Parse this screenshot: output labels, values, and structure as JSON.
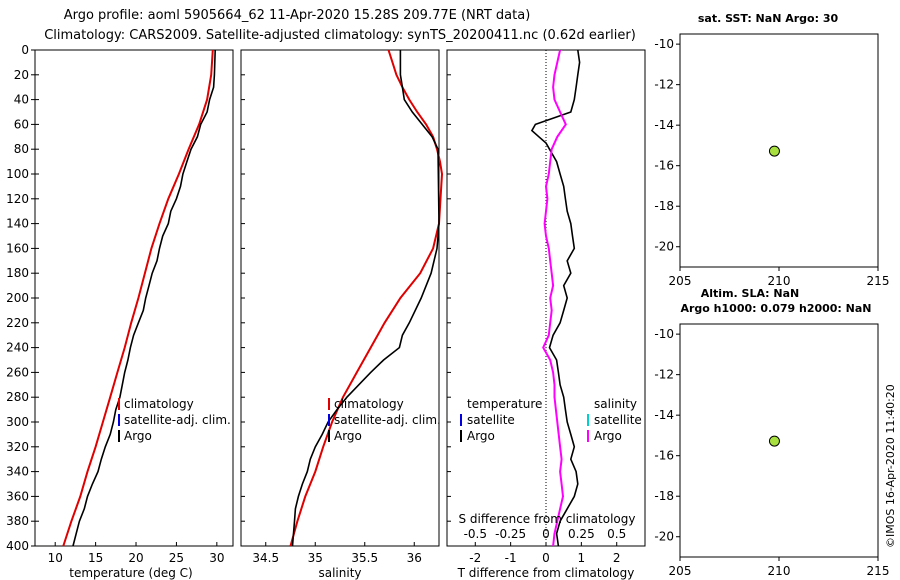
{
  "title": {
    "line1": "Argo profile: aoml 5905664_62 11-Apr-2020 15.28S 209.77E (NRT data)",
    "line2": "Climatology: CARS2009. Satellite-adjusted climatology: synTS_20200411.nc (0.62d earlier)"
  },
  "stamp": "©IMOS 16-Apr-2020 11:40:20",
  "colors": {
    "climatology": "#e00000",
    "satellite_adj": "#0000e0",
    "argo": "#000000",
    "t_diff": "#ff00ff",
    "s_satellite": "#00d0d0",
    "dot": "#a8e040"
  },
  "chart_data": [
    {
      "type": "line",
      "id": "temperature",
      "xlabel": "temperature (deg C)",
      "ylabel": "",
      "xlim": [
        7.5,
        32
      ],
      "ylim": [
        400,
        0
      ],
      "xticks": [
        "10",
        "15",
        "20",
        "25",
        "30"
      ],
      "xtick_values": [
        10,
        15,
        20,
        25,
        30
      ],
      "yticks": [
        "0",
        "20",
        "40",
        "60",
        "80",
        "100",
        "120",
        "140",
        "160",
        "180",
        "200",
        "220",
        "240",
        "260",
        "280",
        "300",
        "320",
        "340",
        "360",
        "380",
        "400"
      ],
      "ytick_values": [
        0,
        20,
        40,
        60,
        80,
        100,
        120,
        140,
        160,
        180,
        200,
        220,
        240,
        260,
        280,
        300,
        320,
        340,
        360,
        380,
        400
      ],
      "legend": [
        "climatology",
        "satellite-adj. clim.",
        "Argo"
      ],
      "series": [
        {
          "name": "climatology",
          "depth": [
            0,
            20,
            40,
            60,
            80,
            100,
            120,
            140,
            160,
            180,
            200,
            220,
            240,
            260,
            280,
            300,
            320,
            340,
            360,
            380,
            400
          ],
          "values": [
            29.5,
            29.3,
            28.8,
            27.8,
            26.5,
            25.3,
            24.0,
            22.9,
            21.9,
            21.1,
            20.3,
            19.4,
            18.6,
            17.7,
            16.8,
            15.9,
            15.0,
            14.0,
            13.1,
            12.0,
            11.0
          ]
        },
        {
          "name": "Argo",
          "depth": [
            0,
            20,
            30,
            40,
            50,
            60,
            70,
            80,
            90,
            100,
            110,
            120,
            130,
            140,
            150,
            160,
            170,
            180,
            190,
            200,
            210,
            220,
            230,
            240,
            250,
            260,
            270,
            280,
            290,
            300,
            310,
            320,
            330,
            340,
            350,
            360,
            370,
            380,
            390,
            400
          ],
          "values": [
            29.8,
            29.7,
            29.6,
            29.1,
            28.8,
            28.0,
            27.6,
            26.8,
            26.3,
            25.8,
            25.5,
            25.0,
            24.3,
            24.0,
            23.3,
            22.9,
            22.6,
            22.0,
            21.6,
            21.2,
            20.9,
            20.3,
            19.7,
            19.3,
            19.0,
            18.6,
            18.3,
            18.0,
            17.5,
            17.2,
            16.8,
            16.2,
            15.7,
            15.3,
            14.6,
            14.0,
            13.6,
            13.0,
            12.6,
            12.2
          ]
        }
      ]
    },
    {
      "type": "line",
      "id": "salinity",
      "xlabel": "salinity",
      "ylabel": "",
      "xlim": [
        34.25,
        36.25
      ],
      "ylim": [
        400,
        0
      ],
      "xticks": [
        "34.5",
        "35",
        "35.5",
        "36"
      ],
      "xtick_values": [
        34.5,
        35,
        35.5,
        36
      ],
      "legend": [
        "climatology",
        "satellite-adj. clim.",
        "Argo"
      ],
      "series": [
        {
          "name": "climatology",
          "depth": [
            0,
            10,
            20,
            30,
            40,
            50,
            60,
            70,
            80,
            90,
            100,
            140,
            160,
            180,
            200,
            220,
            240,
            260,
            280,
            300,
            320,
            340,
            360,
            380,
            400
          ],
          "values": [
            35.74,
            35.78,
            35.82,
            35.88,
            35.95,
            36.03,
            36.12,
            36.19,
            36.23,
            36.26,
            36.28,
            36.25,
            36.19,
            36.06,
            35.86,
            35.7,
            35.56,
            35.42,
            35.28,
            35.17,
            35.08,
            35.0,
            34.9,
            34.82,
            34.75
          ]
        },
        {
          "name": "Argo",
          "depth": [
            0,
            10,
            20,
            30,
            40,
            50,
            60,
            70,
            80,
            140,
            160,
            180,
            200,
            220,
            230,
            240,
            250,
            260,
            270,
            280,
            290,
            300,
            310,
            320,
            330,
            340,
            350,
            360,
            370,
            380,
            390,
            400
          ],
          "values": [
            35.86,
            35.86,
            35.86,
            35.88,
            35.9,
            35.98,
            36.08,
            36.18,
            36.24,
            36.25,
            36.23,
            36.17,
            36.07,
            35.95,
            35.88,
            35.85,
            35.69,
            35.56,
            35.44,
            35.32,
            35.22,
            35.13,
            35.07,
            35.0,
            34.95,
            34.92,
            34.87,
            34.83,
            34.8,
            34.79,
            34.78,
            34.77
          ]
        }
      ]
    },
    {
      "type": "line",
      "id": "differences",
      "xlabel": "T difference from climatology",
      "ylabel": "",
      "xlim": [
        -2.8,
        2.8
      ],
      "ylim": [
        400,
        0
      ],
      "xticks": [
        "-2",
        "-1",
        "0",
        "1",
        "2"
      ],
      "xtick_values": [
        -2,
        -1,
        0,
        1,
        2
      ],
      "top_axis_label": "S difference from climatology",
      "top_xticks": [
        "-0.5",
        "-0.25",
        "0",
        "0.25",
        "0.5"
      ],
      "top_xtick_values": [
        -0.5,
        -0.25,
        0,
        0.25,
        0.5
      ],
      "top_xlim": [
        -0.7,
        0.7
      ],
      "legend_temperature": [
        "temperature",
        "satellite",
        "Argo"
      ],
      "legend_salinity": [
        "salinity",
        "satellite",
        "Argo"
      ],
      "series": [
        {
          "name": "T difference (Argo)",
          "depth": [
            0,
            10,
            20,
            30,
            40,
            50,
            60,
            65,
            70,
            75,
            80,
            90,
            100,
            110,
            120,
            130,
            140,
            150,
            160,
            170,
            180,
            190,
            200,
            210,
            220,
            230,
            240,
            250,
            260,
            270,
            280,
            290,
            300,
            310,
            320,
            330,
            340,
            350,
            360,
            370,
            380,
            390,
            400
          ],
          "values": [
            0.9,
            0.95,
            0.9,
            0.85,
            0.8,
            0.7,
            -0.3,
            -0.4,
            -0.2,
            0,
            0.1,
            0.3,
            0.4,
            0.5,
            0.55,
            0.6,
            0.7,
            0.75,
            0.8,
            0.6,
            0.7,
            0.5,
            0.6,
            0.5,
            0.4,
            0.2,
            0.1,
            0.3,
            0.35,
            0.4,
            0.5,
            0.55,
            0.6,
            0.7,
            0.8,
            0.7,
            0.85,
            0.9,
            0.8,
            0.6,
            0.4,
            0.3,
            0.35
          ]
        },
        {
          "name": "S difference",
          "depth": [
            0,
            10,
            20,
            30,
            40,
            50,
            60,
            70,
            80,
            90,
            100,
            110,
            120,
            130,
            140,
            150,
            160,
            170,
            180,
            190,
            200,
            210,
            220,
            230,
            240,
            250,
            260,
            270,
            280,
            290,
            300,
            310,
            320,
            330,
            340,
            350,
            360,
            370,
            380,
            390,
            400
          ],
          "values": [
            0.1,
            0.08,
            0.06,
            0.05,
            0.06,
            0.1,
            0.14,
            0.08,
            0.04,
            0.03,
            0.02,
            0.0,
            0.01,
            0.0,
            -0.01,
            0.0,
            0.02,
            0.03,
            0.04,
            0.05,
            0.03,
            0.04,
            0.03,
            0.02,
            -0.02,
            0.03,
            0.05,
            0.06,
            0.06,
            0.07,
            0.08,
            0.09,
            0.1,
            0.11,
            0.1,
            0.11,
            0.12,
            0.1,
            0.08,
            0.06,
            0.05
          ]
        }
      ]
    },
    {
      "type": "scatter",
      "id": "map-sst",
      "title": "sat. SST: NaN Argo: 30",
      "xlim": [
        205,
        215
      ],
      "ylim": [
        -21,
        -9.5
      ],
      "xticks": [
        "205",
        "210",
        "215"
      ],
      "xtick_values": [
        205,
        210,
        215
      ],
      "yticks": [
        "-10",
        "-12",
        "-14",
        "-16",
        "-18",
        "-20"
      ],
      "ytick_values": [
        -10,
        -12,
        -14,
        -16,
        -18,
        -20
      ],
      "points": [
        {
          "x": 209.77,
          "y": -15.28
        }
      ]
    },
    {
      "type": "scatter",
      "id": "map-sla",
      "title_line1": "Altim. SLA: NaN",
      "title_line2": "Argo h1000: 0.079 h2000: NaN",
      "xlim": [
        205,
        215
      ],
      "ylim": [
        -21,
        -9.5
      ],
      "xticks": [
        "205",
        "210",
        "215"
      ],
      "xtick_values": [
        205,
        210,
        215
      ],
      "yticks": [
        "-10",
        "-12",
        "-14",
        "-16",
        "-18",
        "-20"
      ],
      "ytick_values": [
        -10,
        -12,
        -14,
        -16,
        -18,
        -20
      ],
      "points": [
        {
          "x": 209.77,
          "y": -15.28
        }
      ]
    }
  ]
}
